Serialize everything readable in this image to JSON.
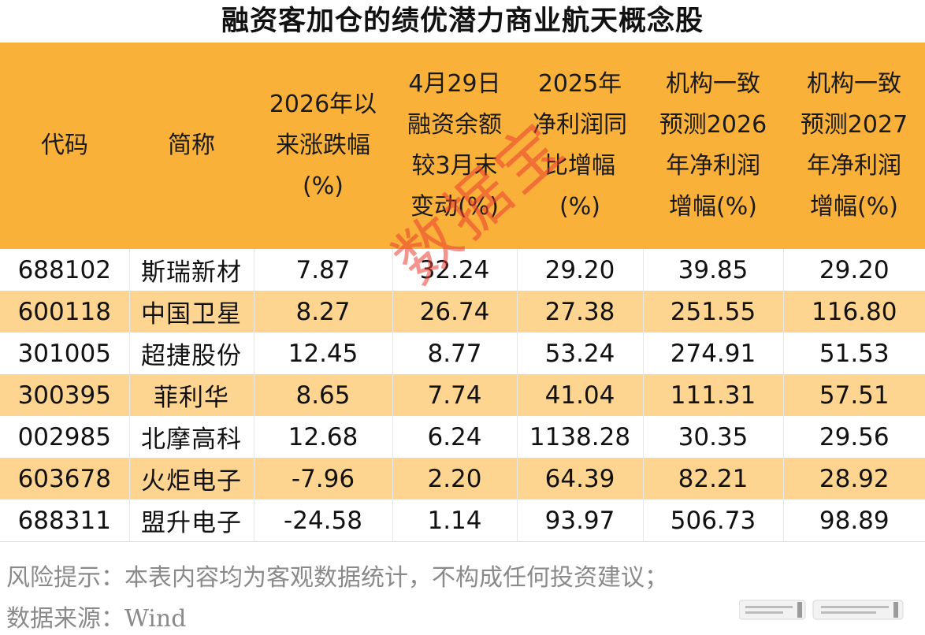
{
  "title": "融资客加仓的绩优潜力商业航天概念股",
  "headers": [
    [
      "代码"
    ],
    [
      "简称"
    ],
    [
      "2026年以",
      "来涨跌幅",
      "(%)"
    ],
    [
      "4月29日",
      "融资余额",
      "较3月末",
      "变动(%)"
    ],
    [
      "2025年",
      "净利润同",
      "比增幅",
      "(%)"
    ],
    [
      "机构一致",
      "预测2026",
      "年净利润",
      "增幅(%)"
    ],
    [
      "机构一致",
      "预测2027",
      "年净利润",
      "增幅(%)"
    ]
  ],
  "rows": [
    [
      "688102",
      "斯瑞新材",
      "7.87",
      "32.24",
      "29.20",
      "39.85",
      "29.20"
    ],
    [
      "600118",
      "中国卫星",
      "8.27",
      "26.74",
      "27.38",
      "251.55",
      "116.80"
    ],
    [
      "301005",
      "超捷股份",
      "12.45",
      "8.77",
      "53.24",
      "274.91",
      "51.53"
    ],
    [
      "300395",
      "菲利华",
      "8.65",
      "7.74",
      "41.04",
      "111.31",
      "57.51"
    ],
    [
      "002985",
      "北摩高科",
      "12.68",
      "6.24",
      "1138.28",
      "30.35",
      "29.56"
    ],
    [
      "603678",
      "火炬电子",
      "-7.96",
      "2.20",
      "64.39",
      "82.21",
      "28.92"
    ],
    [
      "688311",
      "盟升电子",
      "-24.58",
      "1.14",
      "93.97",
      "506.73",
      "98.89"
    ]
  ],
  "watermark": "数据宝",
  "footer": {
    "risk": "风险提示：本表内容均为客观数据统计，不构成任何投资建议；",
    "source": "数据来源：Wind"
  },
  "colors": {
    "header_bg": "#f9b13a",
    "stripe_bg": "#fdd490",
    "watermark": "#eb3c32"
  }
}
